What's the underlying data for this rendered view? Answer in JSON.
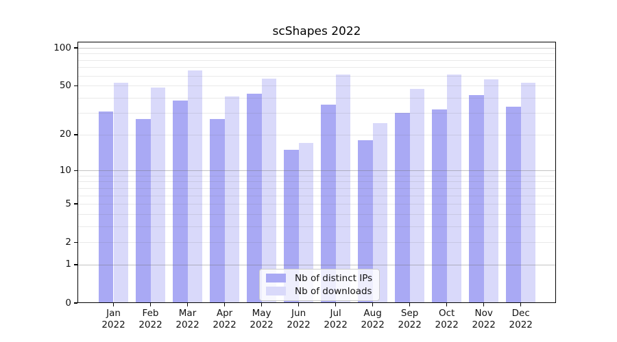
{
  "title": "scShapes 2022",
  "colors": {
    "distinct_ips": "#a9a9f4",
    "downloads": "#d9d9fa",
    "grid_major": "rgba(110,110,110,0.42)",
    "grid_minor": "rgba(110,110,110,0.15)",
    "axis": "#000000"
  },
  "legend": {
    "items": [
      {
        "label": "Nb of distinct IPs",
        "series": "distinct_ips"
      },
      {
        "label": "Nb of downloads",
        "series": "downloads"
      }
    ]
  },
  "y_axis": {
    "scale": "log1p",
    "top_value": 111.9,
    "ticks": [
      {
        "label": "100",
        "value": 100
      },
      {
        "label": "50",
        "value": 50
      },
      {
        "label": "20",
        "value": 20
      },
      {
        "label": "10",
        "value": 10
      },
      {
        "label": "5",
        "value": 5
      },
      {
        "label": "2",
        "value": 2
      },
      {
        "label": "1",
        "value": 1
      },
      {
        "label": "0",
        "value": 0
      }
    ],
    "major_gridlines": [
      1,
      10,
      100
    ],
    "minor_gridlines": [
      2,
      3,
      4,
      5,
      6,
      7,
      8,
      9,
      20,
      30,
      40,
      50,
      60,
      70,
      80,
      90
    ]
  },
  "x_axis": {
    "year": "2022",
    "months": [
      "Jan",
      "Feb",
      "Mar",
      "Apr",
      "May",
      "Jun",
      "Jul",
      "Aug",
      "Sep",
      "Oct",
      "Nov",
      "Dec"
    ]
  },
  "chart_data": {
    "type": "bar",
    "title": "scShapes 2022",
    "categories": [
      "Jan 2022",
      "Feb 2022",
      "Mar 2022",
      "Apr 2022",
      "May 2022",
      "Jun 2022",
      "Jul 2022",
      "Aug 2022",
      "Sep 2022",
      "Oct 2022",
      "Nov 2022",
      "Dec 2022"
    ],
    "series": [
      {
        "name": "Nb of distinct IPs",
        "key": "distinct_ips",
        "values": [
          31,
          27,
          38,
          27,
          43,
          15,
          35,
          18,
          30,
          32,
          42,
          34
        ]
      },
      {
        "name": "Nb of downloads",
        "key": "downloads",
        "values": [
          53,
          48,
          66,
          41,
          57,
          17,
          61,
          25,
          47,
          61,
          56,
          53
        ]
      }
    ],
    "xlabel": "",
    "ylabel": "",
    "yscale": "log1p",
    "ylim": [
      0,
      111.9
    ],
    "ytick_values": [
      0,
      1,
      2,
      5,
      10,
      20,
      50,
      100
    ],
    "grid": true,
    "legend_position": "lower center"
  }
}
